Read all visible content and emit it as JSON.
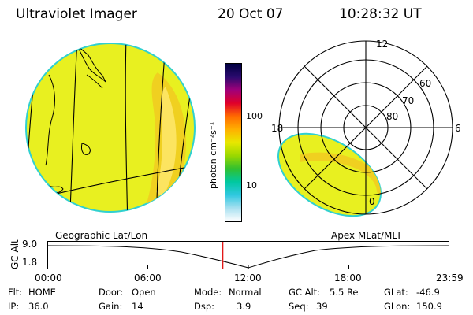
{
  "header": {
    "title": "Ultraviolet Imager",
    "date": "20 Oct 07",
    "time": "10:28:32 UT"
  },
  "colorbar": {
    "unit_label": "photon cm⁻²s⁻¹",
    "ticks": [
      "100",
      "10"
    ],
    "gradient": [
      "#000040",
      "#2a0a6e",
      "#a0007a",
      "#e0002a",
      "#ff6a00",
      "#ffb000",
      "#e8e800",
      "#9ad800",
      "#30c030",
      "#00c8a0",
      "#30c8e0",
      "#a8e0f0",
      "#ffffff"
    ]
  },
  "panels": {
    "geographic_label": "Geographic Lat/Lon",
    "apex_label": "Apex MLat/MLT"
  },
  "polar_grid": {
    "lat_labels": [
      "60",
      "70",
      "80"
    ],
    "mlt_labels": {
      "top": "12",
      "left": "18",
      "right": "6",
      "bottom": "0"
    }
  },
  "altitude_plot": {
    "ylabel": "GC Alt",
    "yticks": [
      "9.0",
      "1.8"
    ],
    "xticks": [
      "00:00",
      "06:00",
      "12:00",
      "18:00",
      "23:59"
    ],
    "current_time_fraction": 0.4364
  },
  "info": {
    "flt_label": "Flt:",
    "flt_value": "HOME",
    "ip_label": "IP:",
    "ip_value": "36.0",
    "door_label": "Door:",
    "door_value": "Open",
    "gain_label": "Gain:",
    "gain_value": "14",
    "mode_label": "Mode:",
    "mode_value": "Normal",
    "dsp_label": "Dsp:",
    "dsp_value": "3.9",
    "gcalt_label": "GC Alt:",
    "gcalt_value": "5.5 Re",
    "seq_label": "Seq:",
    "seq_value": "39",
    "glat_label": "GLat:",
    "glat_value": "-46.9",
    "glon_label": "GLon:",
    "glon_value": "150.9"
  },
  "colors": {
    "disk_fill": "#e8f020",
    "aurora": "#f0d020",
    "aurora_core": "#ffe870",
    "limb": "#30d0d0",
    "marker": "#e00000"
  }
}
